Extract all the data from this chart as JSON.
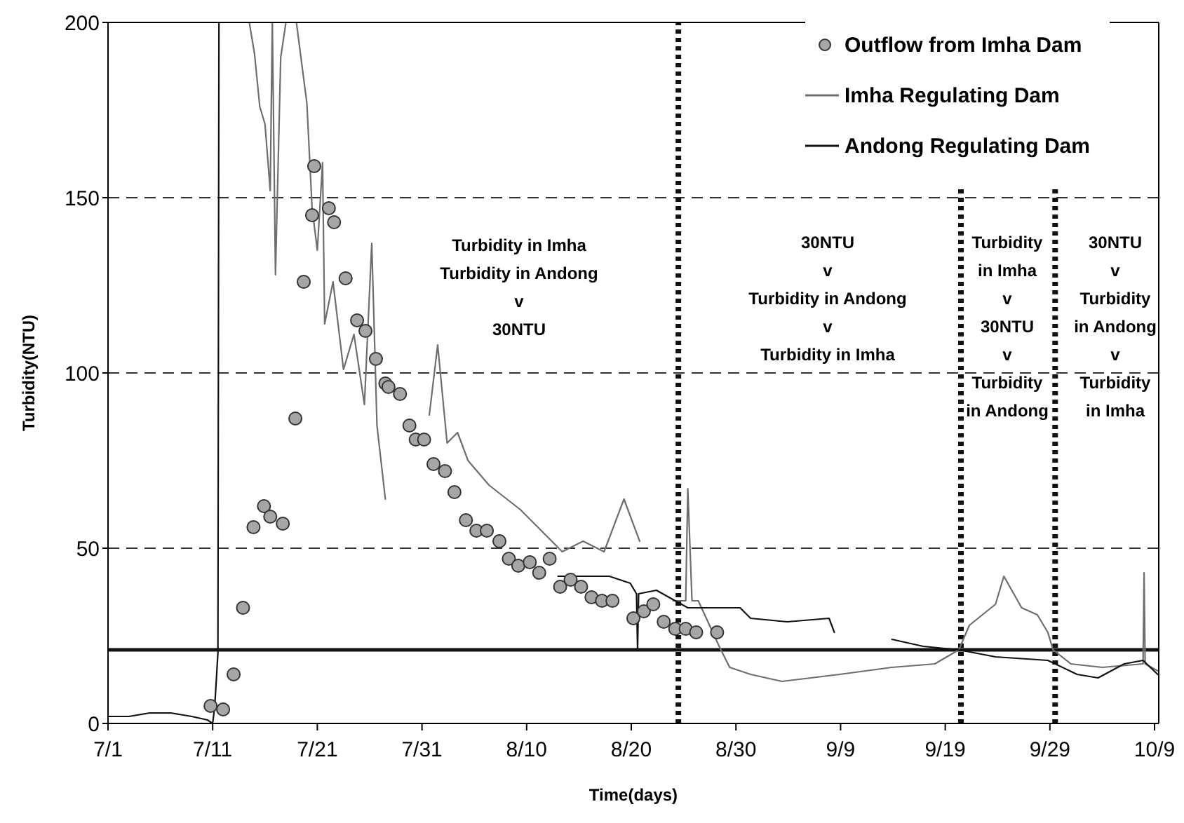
{
  "chart_data": {
    "type": "line",
    "xlabel": "Time(days)",
    "ylabel": "Turbidity(NTU)",
    "xlim": [
      "--07-01",
      "--10-09T09:36"
    ],
    "xticks": [
      {
        "value": "--07-01",
        "label": "7/1"
      },
      {
        "value": "--07-11",
        "label": "7/11"
      },
      {
        "value": "--07-21",
        "label": "7/21"
      },
      {
        "value": "--07-31",
        "label": "7/31"
      },
      {
        "value": "--08-10",
        "label": "8/10"
      },
      {
        "value": "--08-20",
        "label": "8/20"
      },
      {
        "value": "--08-30",
        "label": "8/30"
      },
      {
        "value": "--09-09",
        "label": "9/9"
      },
      {
        "value": "--09-19",
        "label": "9/19"
      },
      {
        "value": "--09-29",
        "label": "9/29"
      },
      {
        "value": "--10-09",
        "label": "10/9"
      }
    ],
    "ylim": [
      0,
      200
    ],
    "yticks": [
      0,
      50,
      100,
      150,
      200
    ],
    "grid": "y",
    "legend": "top right",
    "series": [
      {
        "name": "Outflow from Imha Dam",
        "type": "scatter",
        "marker": "circle",
        "color": "#a6a6a6",
        "x": [
          "--07-10T19:12",
          "--07-12",
          "--07-13",
          "--07-13T21:36",
          "--07-14T21:36",
          "--07-15T21:36",
          "--07-16T12:00",
          "--07-17T16:48",
          "--07-18T21:36",
          "--07-19T16:48",
          "--07-20T12:00",
          "--07-20T16:48",
          "--07-22T02:24",
          "--07-22T14:24",
          "--07-23T16:48",
          "--07-24T19:12",
          "--07-25T14:24",
          "--07-26T14:24",
          "--07-27T12:00",
          "--07-27T19:12",
          "--07-28T21:36",
          "--07-29T19:12",
          "--07-30T09:36",
          "--07-31T04:48",
          "--08-01T02:24",
          "--08-02T04:48",
          "--08-03T02:24",
          "--08-04T04:48",
          "--08-05T04:48",
          "--08-06T04:48",
          "--08-07T09:36",
          "--08-08T07:12",
          "--08-09T04:48",
          "--08-10T07:12",
          "--08-11T04:48",
          "--08-12T04:48",
          "--08-13T04:48",
          "--08-14T04:48",
          "--08-15T04:48",
          "--08-16T04:48",
          "--08-17T04:48",
          "--08-18T04:48",
          "--08-20T04:48",
          "--08-21T04:48",
          "--08-22T02:24",
          "--08-23T02:24",
          "--08-24T04:48",
          "--08-25T04:48",
          "--08-26T04:48",
          "--08-28T04:48"
        ],
        "values": [
          5,
          4,
          14,
          33,
          56,
          62,
          59,
          57,
          87,
          126,
          145,
          159,
          147,
          143,
          127,
          115,
          112,
          104,
          97,
          96,
          94,
          85,
          81,
          81,
          74,
          72,
          66,
          58,
          55,
          55,
          52,
          47,
          45,
          46,
          43,
          47,
          39,
          41,
          39,
          36,
          35,
          35,
          30,
          32,
          34,
          29,
          27,
          27,
          26,
          26
        ]
      },
      {
        "name": "Imha Regulating Dam",
        "color": "#6e6e6e",
        "x": [
          "--07-14T12:00",
          "--07-15",
          "--07-15T12:00",
          "--07-16",
          "--07-16T12:00",
          "--07-16T16:48",
          "--07-17",
          "--07-17T12:00",
          "--07-18",
          "--07-19",
          "--07-20",
          "--07-20T12:00",
          "--07-21",
          "--07-21T12:00",
          "--07-21T16:48",
          "--07-22T12:00",
          "--07-23T12:00",
          "--07-24T12:00",
          "--07-25T12:00",
          "--07-26T04:48",
          "--07-26T16:48",
          "--07-27T12:00",
          "--07-29",
          "--07-31T16:48",
          "--08-01T12:00",
          "--08-02T09:36",
          "--08-03T09:36",
          "--08-04T09:36",
          "--08-06T09:36",
          "--08-09T09:36",
          "--08-11T09:36",
          "--08-13T09:36",
          "--08-15T09:36",
          "--08-17T09:36",
          "--08-19T07:12",
          "--08-20T19:12",
          "--08-22",
          "--08-24",
          "--08-25T04:48",
          "--08-25T09:36",
          "--08-25T19:12",
          "--08-26T09:36",
          "--08-28T09:36",
          "--08-29T09:36",
          "--08-31T09:36",
          "--09-03T09:36",
          "--09-08T21:36",
          "--09-13T21:36",
          "--09-18",
          "--09-20T07:12",
          "--09-21T07:12",
          "--09-23T19:12",
          "--09-24T14:24",
          "--09-26T07:12",
          "--09-27T19:12",
          "--09-28T19:12",
          "--09-29T07:12",
          "--10-01",
          "--10-04",
          "--10-07T21:36",
          "--10-08",
          "--10-08T02:24",
          "--10-09T07:12"
        ],
        "values": [
          200,
          191,
          176,
          171,
          152,
          200,
          128,
          190,
          200,
          200,
          177,
          147,
          135,
          160,
          114,
          126,
          101,
          111,
          91,
          137,
          85,
          64,
          null,
          88,
          108,
          80,
          83,
          75,
          68,
          61,
          55,
          49,
          52,
          49,
          64,
          52,
          null,
          35,
          35,
          67,
          35,
          35,
          22,
          16,
          14,
          12,
          14,
          16,
          17,
          21,
          28,
          34,
          42,
          33,
          31,
          26,
          21,
          17,
          16,
          17,
          43,
          17,
          15
        ]
      },
      {
        "name": "Andong Regulating Dam",
        "color": "#111111",
        "x": [
          "--07-01",
          "--07-03",
          "--07-05",
          "--07-07",
          "--07-09",
          "--07-10T12:00",
          "--07-11",
          "--07-11T04:48",
          "--07-11T12:00",
          "--07-11T14:24",
          "--07-11T16:48",
          "--08-13",
          "--08-17T21:36",
          "--08-19T21:36",
          "--08-20T12:00",
          "--08-20T14:24",
          "--08-20T16:48",
          "--08-22T09:36",
          "--08-25T09:36",
          "--08-27T09:36",
          "--08-30T09:36",
          "--08-31T09:36",
          "--09-03T21:36",
          "--09-07T21:36",
          "--09-08T09:36",
          "--09-11",
          "--09-13T21:36",
          "--09-16T21:36",
          "--09-20T07:12",
          "--09-23T19:12",
          "--09-28T19:12",
          "--10-01T14:24",
          "--10-03T14:24",
          "--10-06T02:24",
          "--10-07T21:36",
          "--10-09T07:12"
        ],
        "values": [
          2,
          2,
          3,
          3,
          2,
          1,
          0,
          5,
          20,
          200,
          null,
          42,
          42,
          40,
          37,
          21,
          37,
          38,
          33,
          33,
          33,
          30,
          29,
          30,
          26,
          null,
          24,
          22,
          21,
          19,
          18,
          14,
          13,
          17,
          18,
          14
        ]
      }
    ],
    "ref_lines": [
      {
        "axis": "y",
        "value": 21,
        "color": "#111111",
        "line_style": "solid"
      },
      {
        "axis": "x",
        "value": "--08-24T12:00",
        "color": "#111111",
        "line_style": "dotted"
      },
      {
        "axis": "x",
        "value": "--09-20T12:00",
        "color": "#111111",
        "line_style": "dotted"
      },
      {
        "axis": "x",
        "value": "--09-29T12:00",
        "color": "#111111",
        "line_style": "dotted"
      }
    ],
    "annotations": [
      "Turbidity in Imha\nTurbidity in Andong\nv\n30NTU",
      "30NTU\nv\nTurbidity in Andong\nv\nTurbidity in Imha",
      "Turbidity\nin Imha\nv\n30NTU\nv\nTurbidity\nin Andong",
      "30NTU\nv\nTurbidity\nin Andong\nv\nTurbidity\nin Imha"
    ]
  }
}
